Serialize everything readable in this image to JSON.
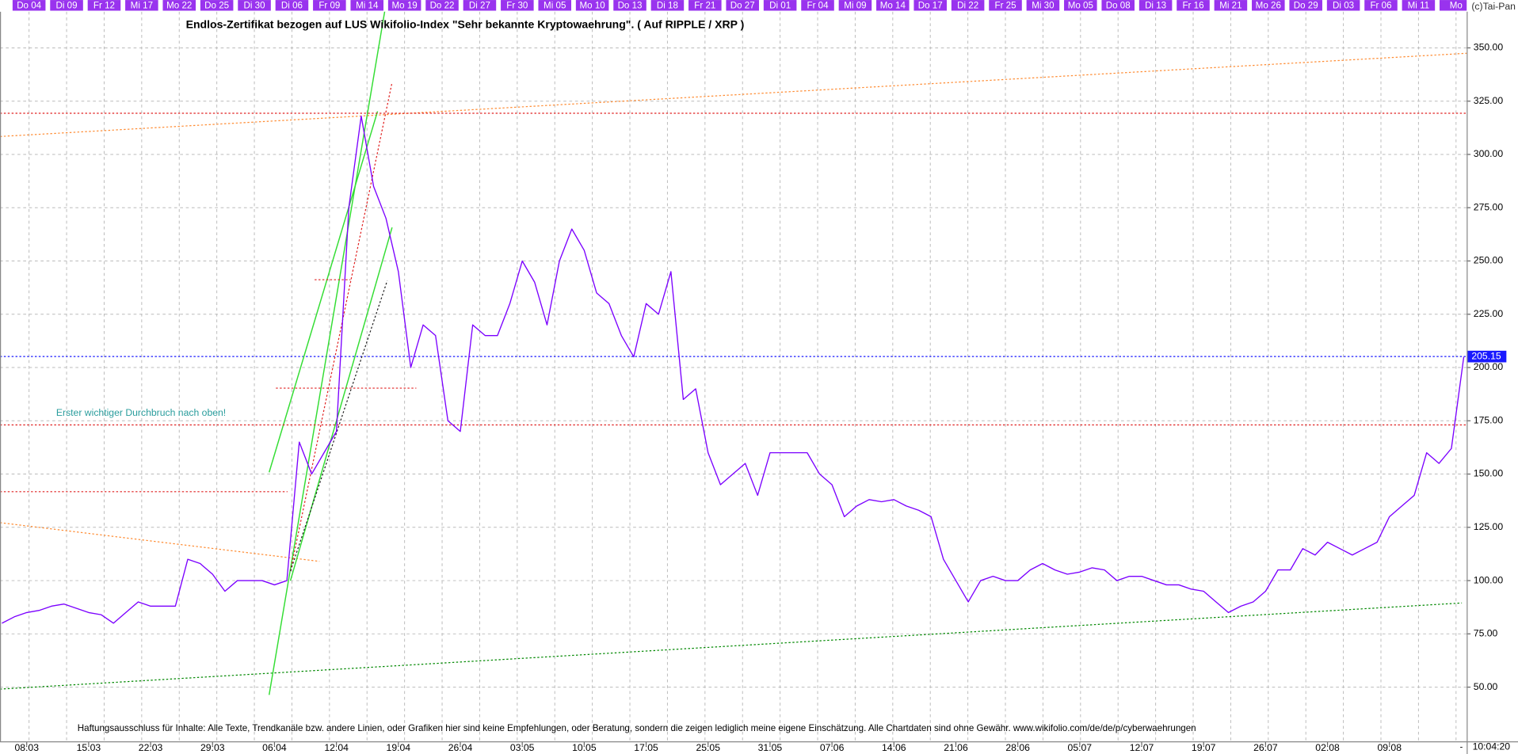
{
  "chart_data": {
    "type": "line",
    "title": "Endlos-Zertifikat bezogen auf LUS Wikifolio-Index \"Sehr bekannte Kryptowaehrung\". ( Auf RIPPLE / XRP )",
    "annotation": "Erster wichtiger Durchbruch nach oben!",
    "disclaimer": "Haftungsausschluss für Inhalte: Alle Texte, Trendkanäle bzw. andere Linien, oder Grafiken hier sind keine Empfehlungen, oder Beratung, sondern die zeigen lediglich meine eigene Einschätzung. Alle Chartdaten sind ohne Gewähr.  www.wikifolio.com/de/de/p/cyberwaehrungen",
    "copyright": "(c)Tai-Pan",
    "time_label": "10:04:20",
    "axis_marker": "-",
    "top_labels": [
      "Do 04",
      "Di 09",
      "Fr 12",
      "Mi 17",
      "Mo 22",
      "Do 25",
      "Di 30",
      "Di 06",
      "Fr 09",
      "Mi 14",
      "Mo 19",
      "Do 22",
      "Di 27",
      "Fr 30",
      "Mi 05",
      "Mo 10",
      "Do 13",
      "Di 18",
      "Fr 21",
      "Do 27",
      "Di 01",
      "Fr 04",
      "Mi 09",
      "Mo 14",
      "Do 17",
      "Di 22",
      "Fr 25",
      "Mi 30",
      "Mo 05",
      "Do 08",
      "Di 13",
      "Fr 16",
      "Mi 21",
      "Mo 26",
      "Do 29",
      "Di 03",
      "Fr 06",
      "Mi 11",
      "Mo"
    ],
    "categories": [
      null,
      null,
      "08:03",
      null,
      null,
      null,
      null,
      "15:03",
      null,
      null,
      null,
      null,
      "22:03",
      null,
      null,
      null,
      null,
      "29:03",
      null,
      null,
      null,
      null,
      "06:04",
      null,
      null,
      null,
      null,
      "12:04",
      null,
      null,
      null,
      null,
      "19:04",
      null,
      null,
      null,
      null,
      "26:04",
      null,
      null,
      null,
      null,
      "03:05",
      null,
      null,
      null,
      null,
      "10:05",
      null,
      null,
      null,
      null,
      "17:05",
      null,
      null,
      null,
      null,
      "25:05",
      null,
      null,
      null,
      null,
      "31:05",
      null,
      null,
      null,
      null,
      "07:06",
      null,
      null,
      null,
      null,
      "14:06",
      null,
      null,
      null,
      null,
      "21:06",
      null,
      null,
      null,
      null,
      "28:06",
      null,
      null,
      null,
      null,
      "05:07",
      null,
      null,
      null,
      null,
      "12:07",
      null,
      null,
      null,
      null,
      "19:07",
      null,
      null,
      null,
      null,
      "26:07",
      null,
      null,
      null,
      null,
      "02:08",
      null,
      null,
      null,
      null,
      "09:08",
      null,
      null,
      null,
      null,
      null,
      null
    ],
    "values": [
      80,
      83,
      85,
      86,
      88,
      89,
      87,
      85,
      84,
      80,
      85,
      90,
      88,
      88,
      88,
      110,
      108,
      103,
      95,
      100,
      100,
      100,
      98,
      100,
      165,
      150,
      160,
      170,
      275,
      318,
      285,
      270,
      245,
      200,
      220,
      215,
      175,
      170,
      220,
      215,
      215,
      230,
      250,
      240,
      220,
      250,
      265,
      255,
      235,
      230,
      215,
      205,
      230,
      225,
      245,
      185,
      190,
      160,
      145,
      150,
      155,
      140,
      160,
      160,
      160,
      160,
      150,
      145,
      130,
      135,
      138,
      137,
      138,
      135,
      133,
      130,
      110,
      100,
      90,
      100,
      102,
      100,
      100,
      105,
      108,
      105,
      103,
      104,
      106,
      105,
      100,
      102,
      102,
      100,
      98,
      98,
      96,
      95,
      90,
      85,
      88,
      90,
      95,
      105,
      105,
      115,
      112,
      118,
      115,
      112,
      115,
      118,
      130,
      135,
      140,
      160,
      155,
      162,
      205
    ],
    "color": "#7b00ff",
    "current_value": 205.15,
    "current_color": "#1a1aff",
    "ylim": [
      25,
      367
    ],
    "yticks": [
      {
        "value": 50,
        "label": "50.00"
      },
      {
        "value": 75,
        "label": "75.00"
      },
      {
        "value": 100,
        "label": "100.00"
      },
      {
        "value": 125,
        "label": "125.00"
      },
      {
        "value": 150,
        "label": "150.00"
      },
      {
        "value": 175,
        "label": "175.00"
      },
      {
        "value": 200,
        "label": "200.00"
      },
      {
        "value": 225,
        "label": "225.00"
      },
      {
        "value": 250,
        "label": "250.00"
      },
      {
        "value": 275,
        "label": "275.00"
      },
      {
        "value": 300,
        "label": "300.00"
      },
      {
        "value": 325,
        "label": "325.00"
      },
      {
        "value": 350,
        "label": "350.00"
      }
    ],
    "grid": true
  }
}
